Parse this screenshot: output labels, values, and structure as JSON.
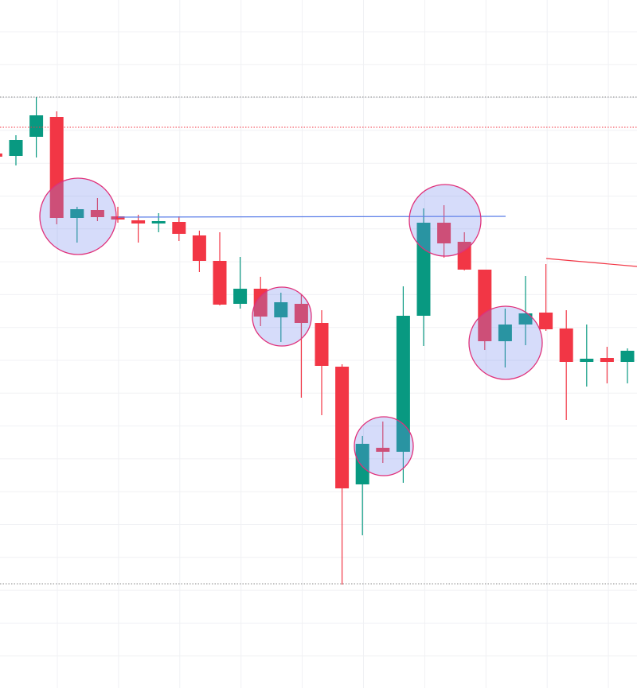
{
  "chart_data": {
    "type": "candlestick",
    "ylim": [
      0,
      865
    ],
    "up_color": "#089981",
    "down_color": "#f23645",
    "open": [
      672,
      669,
      693,
      718,
      591,
      601,
      593,
      588,
      584,
      586,
      569,
      537,
      483,
      502,
      466,
      483,
      459,
      404,
      256,
      302,
      297,
      468,
      585,
      561,
      526,
      436,
      457,
      472,
      452,
      410,
      415,
      410
    ],
    "high": [
      675,
      695,
      743,
      725,
      605,
      616,
      605,
      595,
      597,
      593,
      575,
      573,
      542,
      517,
      497,
      495,
      475,
      407,
      317,
      335,
      505,
      603,
      607,
      573,
      526,
      477,
      518,
      533,
      475,
      457,
      429,
      427
    ],
    "low": [
      666,
      657,
      667,
      583,
      560,
      587,
      585,
      560,
      573,
      562,
      523,
      481,
      477,
      455,
      435,
      365,
      343,
      130,
      192,
      283,
      258,
      430,
      541,
      525,
      425,
      403,
      431,
      449,
      337,
      379,
      383,
      383
    ],
    "close": [
      668,
      689,
      720,
      591,
      602,
      592,
      589,
      584,
      587,
      571,
      537,
      482,
      502,
      467,
      485,
      459,
      405,
      251,
      307,
      297,
      468,
      585,
      559,
      526,
      436,
      457,
      471,
      451,
      410,
      414,
      410,
      424
    ]
  }
}
